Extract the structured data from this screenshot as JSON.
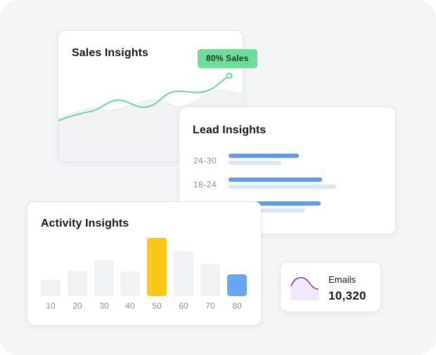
{
  "sales": {
    "title": "Sales Insights",
    "badge": "80% Sales",
    "line_color": "#6fd39a"
  },
  "lead": {
    "title": "Lead Insights",
    "rows": [
      {
        "label": "24-30",
        "main": 0.45,
        "sub": 0.34
      },
      {
        "label": "18-24",
        "main": 0.6,
        "sub": 0.69
      },
      {
        "label": "",
        "main": 0.59,
        "sub": 0.49
      }
    ],
    "bar_color": "#5e9be6"
  },
  "activity": {
    "title": "Activity Insights",
    "chart_data": {
      "type": "bar",
      "categories": [
        "10",
        "20",
        "30",
        "40",
        "50",
        "60",
        "70",
        "80"
      ],
      "values": [
        28,
        43,
        62,
        42,
        100,
        77,
        55,
        37
      ],
      "highlight": {
        "50": "#f8c718",
        "80": "#66a6f2"
      },
      "default_color": "#f1f2f4"
    }
  },
  "emails": {
    "label": "Emails",
    "value": "10,320",
    "accent": "#7a3e7d"
  }
}
